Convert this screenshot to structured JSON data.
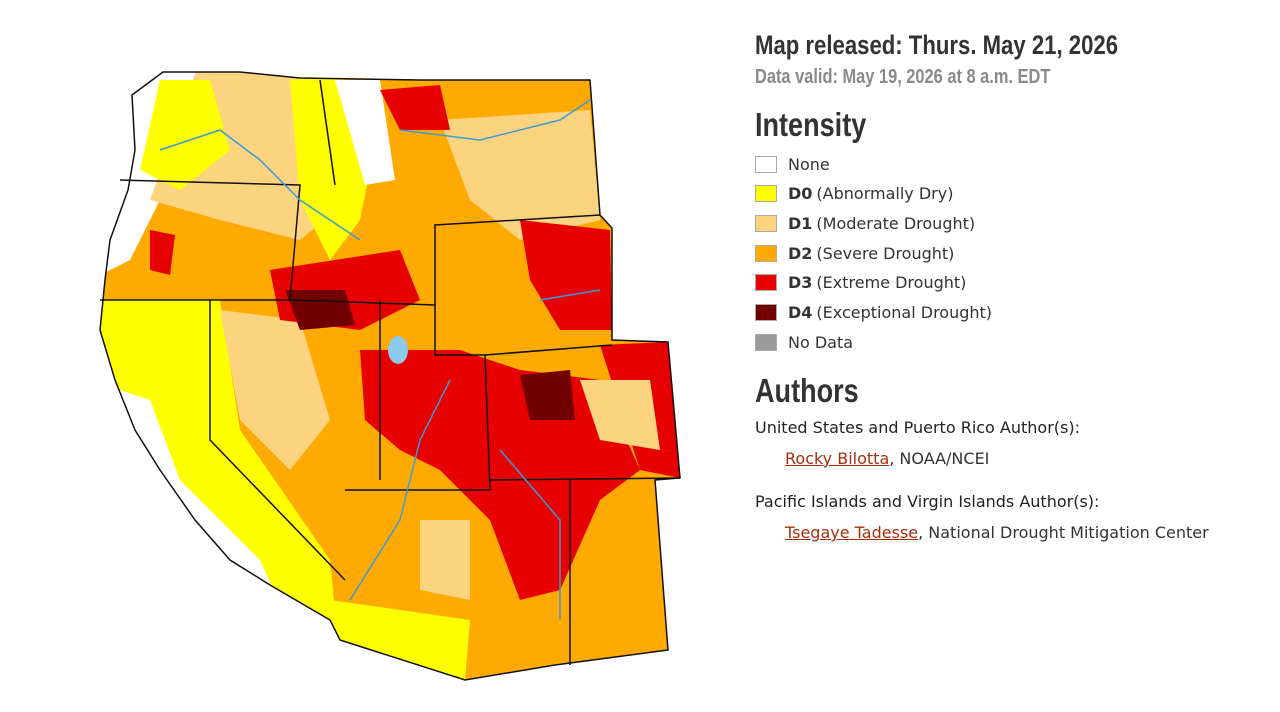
{
  "header": {
    "map_released": "Map released: Thurs. May 21, 2026",
    "data_valid": "Data valid: May 19, 2026 at 8 a.m. EDT"
  },
  "intensity": {
    "title": "Intensity",
    "items": [
      {
        "code": "None",
        "label": "",
        "color": "#ffffff"
      },
      {
        "code": "D0",
        "label": "(Abnormally Dry)",
        "color": "#ffff00"
      },
      {
        "code": "D1",
        "label": "(Moderate Drought)",
        "color": "#fcd37f"
      },
      {
        "code": "D2",
        "label": "(Severe Drought)",
        "color": "#ffaa00"
      },
      {
        "code": "D3",
        "label": "(Extreme Drought)",
        "color": "#e60000"
      },
      {
        "code": "D4",
        "label": "(Exceptional Drought)",
        "color": "#730000"
      },
      {
        "code": "No Data",
        "label": "",
        "color": "#9b9b9b"
      }
    ]
  },
  "authors": {
    "title": "Authors",
    "groups": [
      {
        "heading": "United States and Puerto Rico Author(s):",
        "name": "Rocky Bilotta",
        "org": ", NOAA/NCEI"
      },
      {
        "heading": "Pacific Islands and Virgin Islands Author(s):",
        "name": "Tsegaye Tadesse",
        "org": ", National Drought Mitigation Center"
      }
    ]
  }
}
